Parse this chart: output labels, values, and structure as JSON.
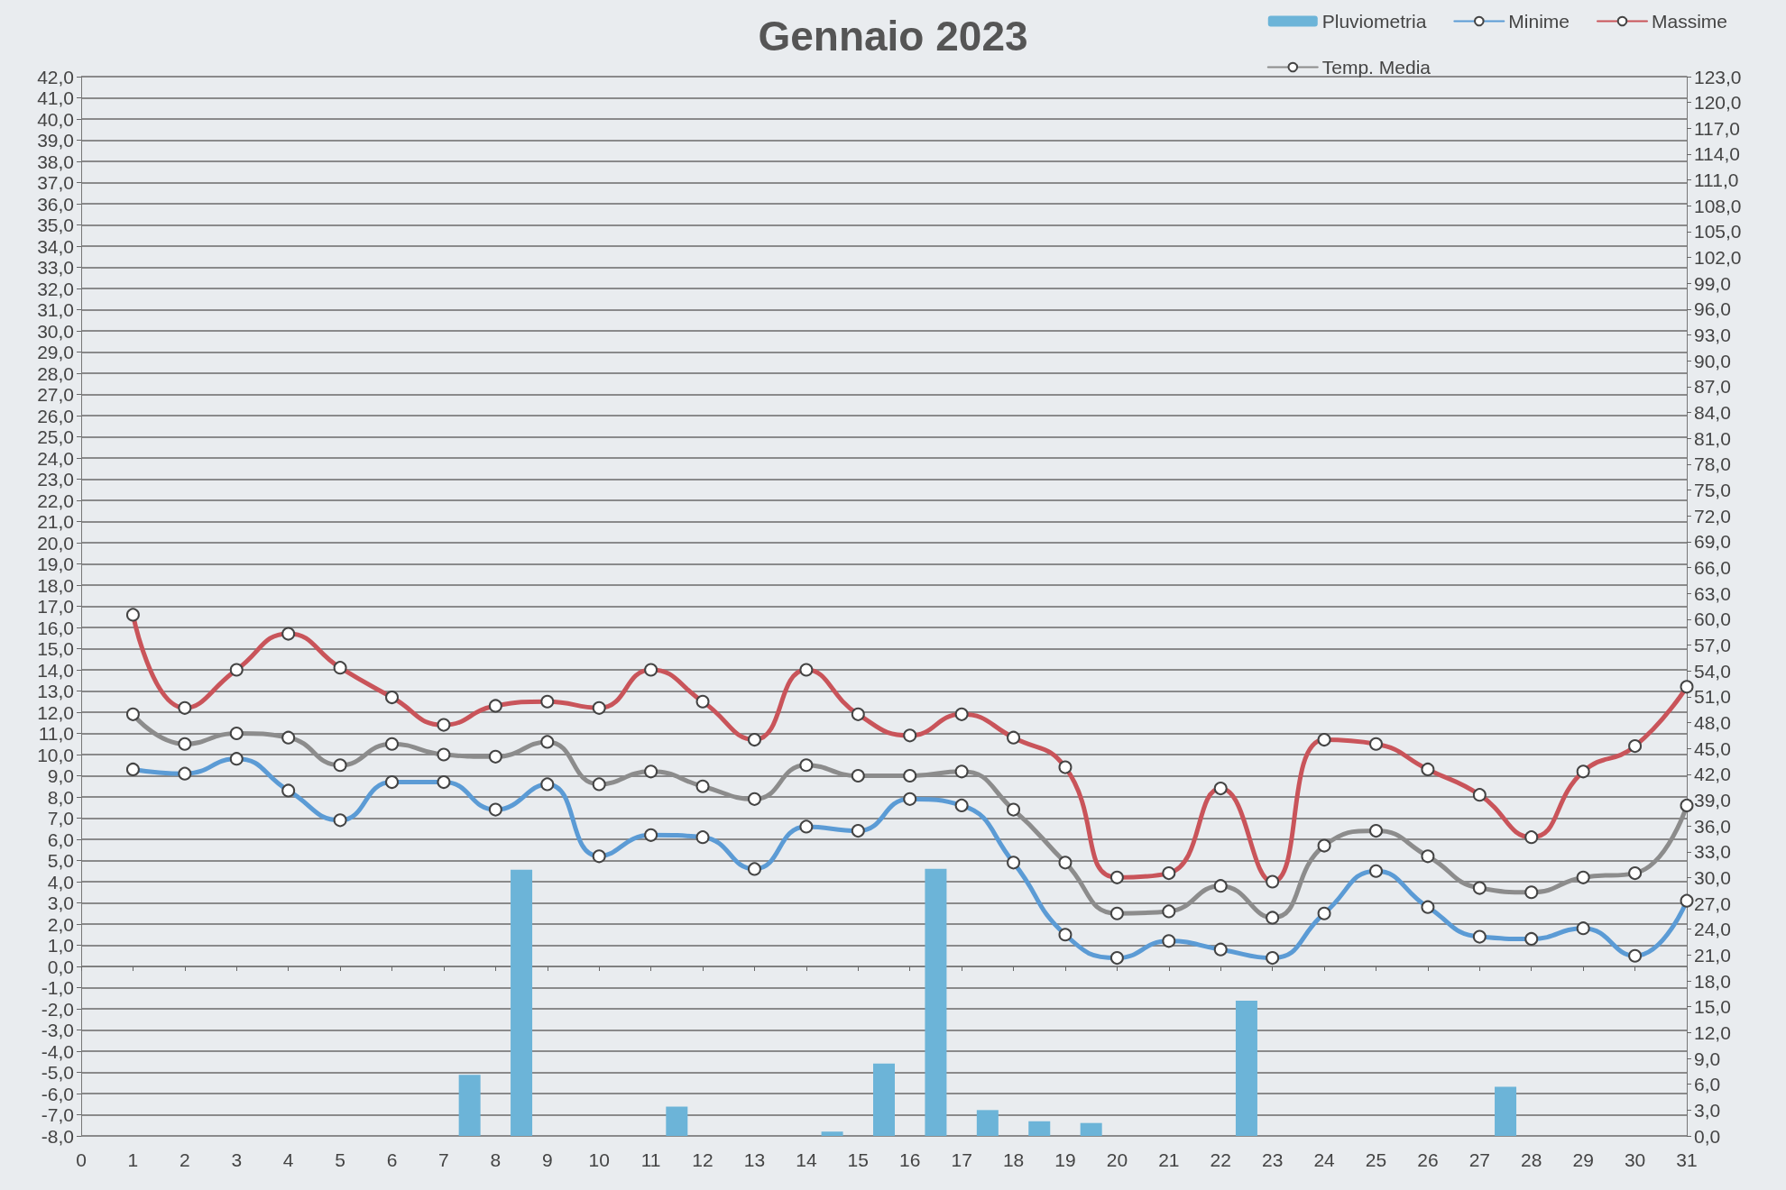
{
  "chart_data": {
    "type": "line",
    "title": "Gennaio 2023",
    "x": [
      1,
      2,
      3,
      4,
      5,
      6,
      7,
      8,
      9,
      10,
      11,
      12,
      13,
      14,
      15,
      16,
      17,
      18,
      19,
      20,
      21,
      22,
      23,
      24,
      25,
      26,
      27,
      28,
      29,
      30,
      31
    ],
    "series": [
      {
        "name": "Pluviometria",
        "type": "bar",
        "axis": "y2",
        "color": "#6cb4d8",
        "x": [
          7.5,
          8.5,
          11.5,
          14.5,
          15.5,
          16.5,
          17.5,
          18.5,
          19.5,
          22.5,
          27.5
        ],
        "values": [
          7.1,
          30.9,
          3.4,
          0.5,
          8.4,
          31.0,
          3.0,
          1.7,
          1.5,
          15.7,
          5.7
        ]
      },
      {
        "name": "Minime",
        "color": "#5b9bd5",
        "values": [
          9.3,
          9.1,
          9.8,
          8.3,
          6.9,
          8.7,
          8.7,
          7.4,
          8.6,
          5.2,
          6.2,
          6.1,
          4.6,
          6.6,
          6.4,
          7.9,
          7.6,
          4.9,
          1.5,
          0.4,
          1.2,
          0.8,
          0.4,
          2.5,
          4.5,
          2.8,
          1.4,
          1.3,
          1.8,
          0.5,
          3.1
        ]
      },
      {
        "name": "Massime",
        "color": "#c9545a",
        "values": [
          16.6,
          12.2,
          14.0,
          15.7,
          14.1,
          12.7,
          11.4,
          12.3,
          12.5,
          12.2,
          14.0,
          12.5,
          10.7,
          14.0,
          11.9,
          10.9,
          11.9,
          10.8,
          9.4,
          4.2,
          4.4,
          8.4,
          4.0,
          10.7,
          10.5,
          9.3,
          8.1,
          6.1,
          9.2,
          10.4,
          13.2
        ]
      },
      {
        "name": "Temp. Media",
        "color": "#8c8c8c",
        "values": [
          11.9,
          10.5,
          11.0,
          10.8,
          9.5,
          10.5,
          10.0,
          9.9,
          10.6,
          8.6,
          9.2,
          8.5,
          7.9,
          9.5,
          9.0,
          9.0,
          9.2,
          7.4,
          4.9,
          2.5,
          2.6,
          3.8,
          2.3,
          5.7,
          6.4,
          5.2,
          3.7,
          3.5,
          4.2,
          4.4,
          7.6
        ]
      }
    ],
    "xlim": [
      0,
      31
    ],
    "xticks": [
      0,
      1,
      2,
      3,
      4,
      5,
      6,
      7,
      8,
      9,
      10,
      11,
      12,
      13,
      14,
      15,
      16,
      17,
      18,
      19,
      20,
      21,
      22,
      23,
      24,
      25,
      26,
      27,
      28,
      29,
      30,
      31
    ],
    "ylim": [
      -8,
      42
    ],
    "yticks": [
      {
        "value": -8,
        "label": "-8,0"
      },
      {
        "value": -7,
        "label": "-7,0"
      },
      {
        "value": -6,
        "label": "-6,0"
      },
      {
        "value": -5,
        "label": "-5,0"
      },
      {
        "value": -4,
        "label": "-4,0"
      },
      {
        "value": -3,
        "label": "-3,0"
      },
      {
        "value": -2,
        "label": "-2,0"
      },
      {
        "value": -1,
        "label": "-1,0"
      },
      {
        "value": 0,
        "label": "0,0"
      },
      {
        "value": 1,
        "label": "1,0"
      },
      {
        "value": 2,
        "label": "2,0"
      },
      {
        "value": 3,
        "label": "3,0"
      },
      {
        "value": 4,
        "label": "4,0"
      },
      {
        "value": 5,
        "label": "5,0"
      },
      {
        "value": 6,
        "label": "6,0"
      },
      {
        "value": 7,
        "label": "7,0"
      },
      {
        "value": 8,
        "label": "8,0"
      },
      {
        "value": 9,
        "label": "9,0"
      },
      {
        "value": 10,
        "label": "10,0"
      },
      {
        "value": 11,
        "label": "11,0"
      },
      {
        "value": 12,
        "label": "12,0"
      },
      {
        "value": 13,
        "label": "13,0"
      },
      {
        "value": 14,
        "label": "14,0"
      },
      {
        "value": 15,
        "label": "15,0"
      },
      {
        "value": 16,
        "label": "16,0"
      },
      {
        "value": 17,
        "label": "17,0"
      },
      {
        "value": 18,
        "label": "18,0"
      },
      {
        "value": 19,
        "label": "19,0"
      },
      {
        "value": 20,
        "label": "20,0"
      },
      {
        "value": 21,
        "label": "21,0"
      },
      {
        "value": 22,
        "label": "22,0"
      },
      {
        "value": 23,
        "label": "23,0"
      },
      {
        "value": 24,
        "label": "24,0"
      },
      {
        "value": 25,
        "label": "25,0"
      },
      {
        "value": 26,
        "label": "26,0"
      },
      {
        "value": 27,
        "label": "27,0"
      },
      {
        "value": 28,
        "label": "28,0"
      },
      {
        "value": 29,
        "label": "29,0"
      },
      {
        "value": 30,
        "label": "30,0"
      },
      {
        "value": 31,
        "label": "31,0"
      },
      {
        "value": 32,
        "label": "32,0"
      },
      {
        "value": 33,
        "label": "33,0"
      },
      {
        "value": 34,
        "label": "34,0"
      },
      {
        "value": 35,
        "label": "35,0"
      },
      {
        "value": 36,
        "label": "36,0"
      },
      {
        "value": 37,
        "label": "37,0"
      },
      {
        "value": 38,
        "label": "38,0"
      },
      {
        "value": 39,
        "label": "39,0"
      },
      {
        "value": 40,
        "label": "40,0"
      },
      {
        "value": 41,
        "label": "41,0"
      },
      {
        "value": 42,
        "label": "42,0"
      }
    ],
    "y2lim": [
      0,
      123
    ],
    "y2ticks": [
      {
        "value": 0,
        "label": "0,0"
      },
      {
        "value": 3,
        "label": "3,0"
      },
      {
        "value": 6,
        "label": "6,0"
      },
      {
        "value": 9,
        "label": "9,0"
      },
      {
        "value": 12,
        "label": "12,0"
      },
      {
        "value": 15,
        "label": "15,0"
      },
      {
        "value": 18,
        "label": "18,0"
      },
      {
        "value": 21,
        "label": "21,0"
      },
      {
        "value": 24,
        "label": "24,0"
      },
      {
        "value": 27,
        "label": "27,0"
      },
      {
        "value": 30,
        "label": "30,0"
      },
      {
        "value": 33,
        "label": "33,0"
      },
      {
        "value": 36,
        "label": "36,0"
      },
      {
        "value": 39,
        "label": "39,0"
      },
      {
        "value": 42,
        "label": "42,0"
      },
      {
        "value": 45,
        "label": "45,0"
      },
      {
        "value": 48,
        "label": "48,0"
      },
      {
        "value": 51,
        "label": "51,0"
      },
      {
        "value": 54,
        "label": "54,0"
      },
      {
        "value": 57,
        "label": "57,0"
      },
      {
        "value": 60,
        "label": "60,0"
      },
      {
        "value": 63,
        "label": "63,0"
      },
      {
        "value": 66,
        "label": "66,0"
      },
      {
        "value": 69,
        "label": "69,0"
      },
      {
        "value": 72,
        "label": "72,0"
      },
      {
        "value": 75,
        "label": "75,0"
      },
      {
        "value": 78,
        "label": "78,0"
      },
      {
        "value": 81,
        "label": "81,0"
      },
      {
        "value": 84,
        "label": "84,0"
      },
      {
        "value": 87,
        "label": "87,0"
      },
      {
        "value": 90,
        "label": "90,0"
      },
      {
        "value": 93,
        "label": "93,0"
      },
      {
        "value": 96,
        "label": "96,0"
      },
      {
        "value": 99,
        "label": "99,0"
      },
      {
        "value": 102,
        "label": "102,0"
      },
      {
        "value": 105,
        "label": "105,0"
      },
      {
        "value": 108,
        "label": "108,0"
      },
      {
        "value": 111,
        "label": "111,0"
      },
      {
        "value": 114,
        "label": "114,0"
      },
      {
        "value": 117,
        "label": "117,0"
      },
      {
        "value": 120,
        "label": "120,0"
      },
      {
        "value": 123,
        "label": "123,0"
      }
    ],
    "grid": "y",
    "legend": "top right",
    "marker": "circle",
    "line_style": "solid"
  }
}
